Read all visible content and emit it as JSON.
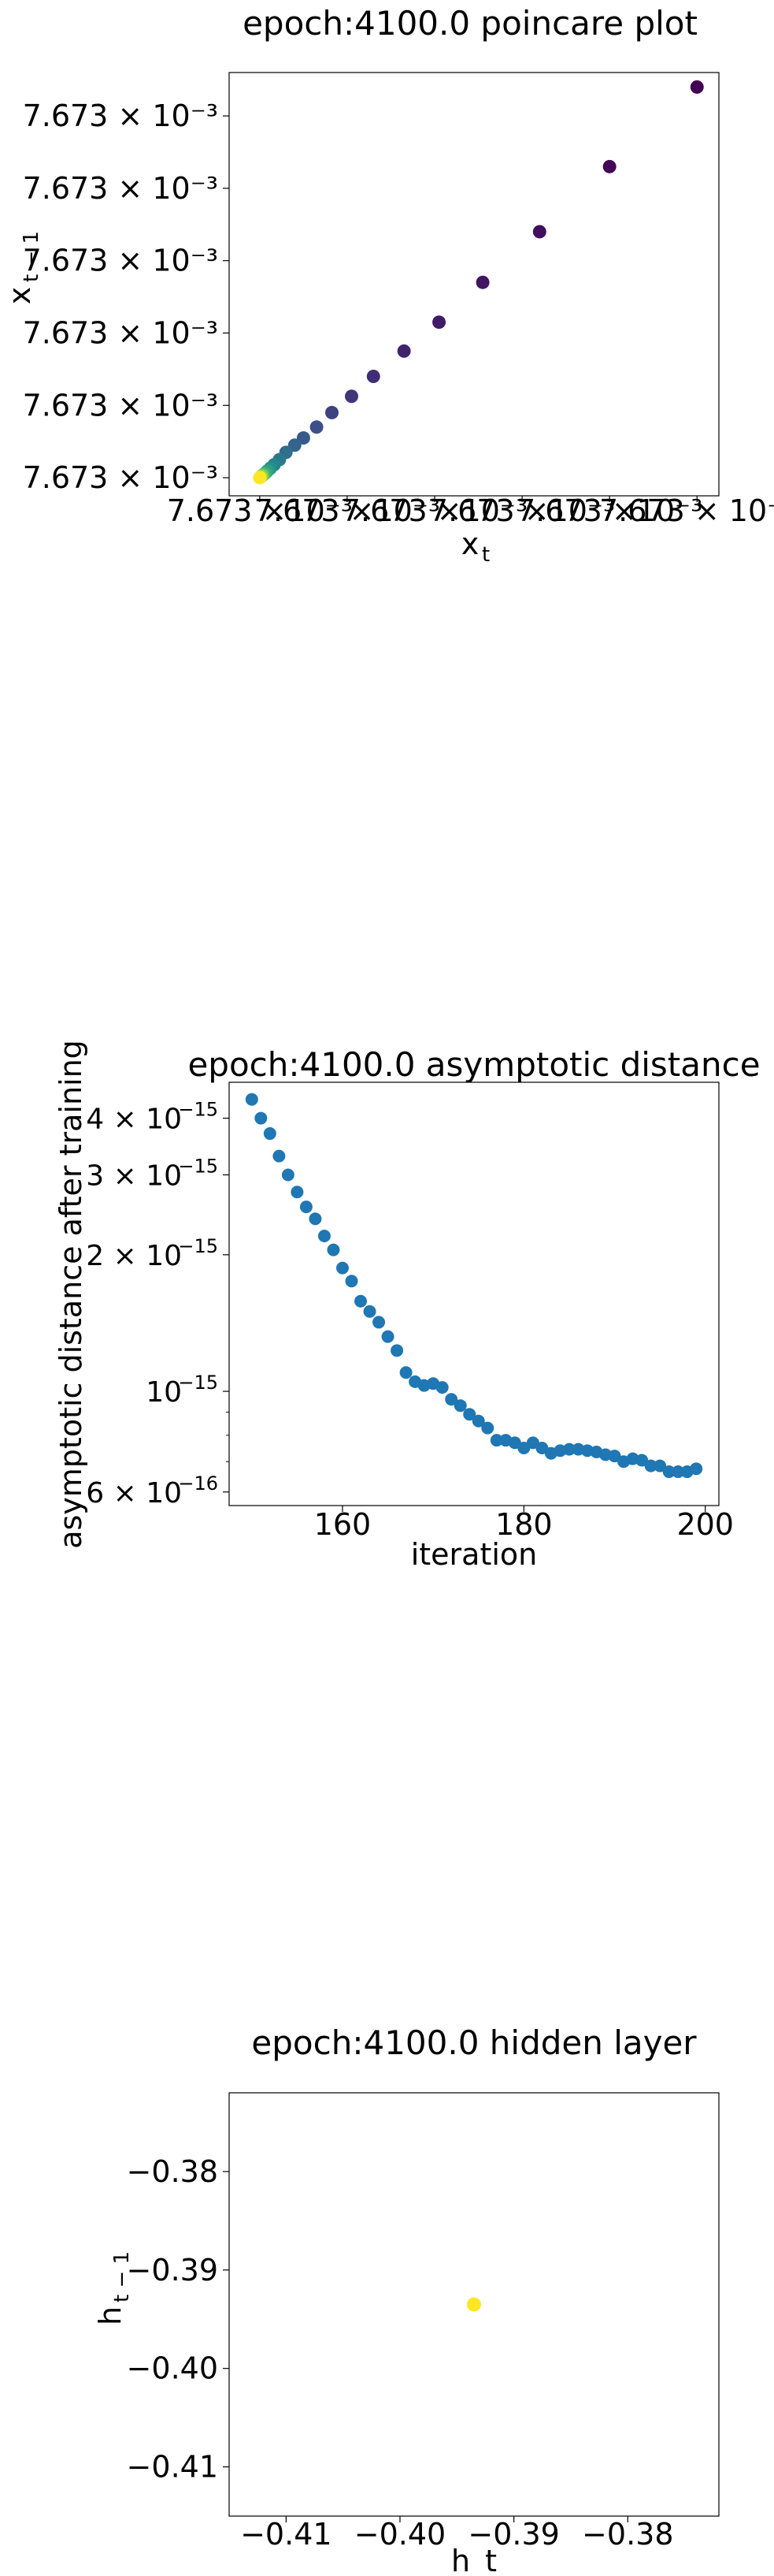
{
  "chart_data": [
    {
      "type": "scatter",
      "title": "epoch:4100.0 poincare plot",
      "xlabel_base": "x",
      "xlabel_sub": "t",
      "ylabel_base": "x",
      "ylabel_sub": "t − 1",
      "x_tick_labels": [
        "7.673 ×10⁻³",
        "7.673 ×10⁻³",
        "7.673 ×10⁻³",
        "7.673 ×10⁻³",
        "7.673 ×10⁻³",
        "7.673 × 10⁻³"
      ],
      "y_tick_labels": [
        "7.673 × 10⁻³",
        "7.673 × 10⁻³",
        "7.673 × 10⁻³",
        "7.673 × 10⁻³",
        "7.673 × 10⁻³",
        "7.673 × 10⁻³"
      ],
      "x_ticks": [
        0.0,
        0.2,
        0.4,
        0.6,
        0.8,
        1.0
      ],
      "y_ticks": [
        0.0,
        0.2,
        0.4,
        0.6,
        0.8,
        1.0
      ],
      "xlim": [
        -0.07,
        1.05
      ],
      "ylim": [
        -0.05,
        1.12
      ],
      "colormap": "viridis",
      "points": [
        {
          "x": 1.0,
          "y": 1.08,
          "c": 0.0
        },
        {
          "x": 0.8,
          "y": 0.86,
          "c": 0.02
        },
        {
          "x": 0.64,
          "y": 0.68,
          "c": 0.04
        },
        {
          "x": 0.51,
          "y": 0.54,
          "c": 0.06
        },
        {
          "x": 0.41,
          "y": 0.43,
          "c": 0.08
        },
        {
          "x": 0.33,
          "y": 0.35,
          "c": 0.11
        },
        {
          "x": 0.26,
          "y": 0.28,
          "c": 0.14
        },
        {
          "x": 0.21,
          "y": 0.225,
          "c": 0.17
        },
        {
          "x": 0.165,
          "y": 0.18,
          "c": 0.2
        },
        {
          "x": 0.13,
          "y": 0.14,
          "c": 0.24
        },
        {
          "x": 0.1,
          "y": 0.11,
          "c": 0.28
        },
        {
          "x": 0.08,
          "y": 0.09,
          "c": 0.32
        },
        {
          "x": 0.06,
          "y": 0.07,
          "c": 0.36
        },
        {
          "x": 0.045,
          "y": 0.05,
          "c": 0.4
        },
        {
          "x": 0.033,
          "y": 0.036,
          "c": 0.45
        },
        {
          "x": 0.024,
          "y": 0.026,
          "c": 0.5
        },
        {
          "x": 0.017,
          "y": 0.018,
          "c": 0.56
        },
        {
          "x": 0.012,
          "y": 0.012,
          "c": 0.62
        },
        {
          "x": 0.008,
          "y": 0.008,
          "c": 0.7
        },
        {
          "x": 0.005,
          "y": 0.005,
          "c": 0.8
        },
        {
          "x": 0.002,
          "y": 0.002,
          "c": 0.9
        },
        {
          "x": 0.0,
          "y": 0.0,
          "c": 1.0
        }
      ]
    },
    {
      "type": "scatter",
      "title": "epoch:4100.0 asymptotic distance",
      "xlabel": "iteration",
      "ylabel": "asymptotic distance after training",
      "yscale": "log",
      "xlim": [
        147.5,
        201.5
      ],
      "ylim": [
        5.6e-16,
        4.8e-15
      ],
      "x_ticks": [
        160,
        180,
        200
      ],
      "x_tick_labels": [
        "160",
        "180",
        "200"
      ],
      "y_ticks": [
        4e-15,
        3e-15,
        2e-15,
        1e-15,
        6e-16
      ],
      "y_tick_labels": [
        {
          "base": "4 × 10",
          "exp": "−15"
        },
        {
          "base": "3 × 10",
          "exp": "−15"
        },
        {
          "base": "2 × 10",
          "exp": "−15"
        },
        {
          "base": "10",
          "exp": "−15"
        },
        {
          "base": "6 × 10",
          "exp": "−16"
        }
      ],
      "color": "#1f77b4",
      "x": [
        150,
        151,
        152,
        153,
        154,
        155,
        156,
        157,
        158,
        159,
        160,
        161,
        162,
        163,
        164,
        165,
        166,
        167,
        168,
        169,
        170,
        171,
        172,
        173,
        174,
        175,
        176,
        177,
        178,
        179,
        180,
        181,
        182,
        183,
        184,
        185,
        186,
        187,
        188,
        189,
        190,
        191,
        192,
        193,
        194,
        195,
        196,
        197,
        198,
        199
      ],
      "y": [
        4.4e-15,
        4e-15,
        3.7e-15,
        3.3e-15,
        3e-15,
        2.75e-15,
        2.55e-15,
        2.4e-15,
        2.2e-15,
        2.05e-15,
        1.87e-15,
        1.75e-15,
        1.58e-15,
        1.5e-15,
        1.42e-15,
        1.32e-15,
        1.23e-15,
        1.1e-15,
        1.05e-15,
        1.03e-15,
        1.04e-15,
        1.02e-15,
        9.6e-16,
        9.3e-16,
        8.9e-16,
        8.6e-16,
        8.3e-16,
        7.8e-16,
        7.8e-16,
        7.7e-16,
        7.5e-16,
        7.7e-16,
        7.5e-16,
        7.3e-16,
        7.4e-16,
        7.45e-16,
        7.45e-16,
        7.4e-16,
        7.35e-16,
        7.25e-16,
        7.2e-16,
        7e-16,
        7.1e-16,
        7.05e-16,
        6.85e-16,
        6.85e-16,
        6.65e-16,
        6.65e-16,
        6.65e-16,
        6.75e-16
      ]
    },
    {
      "type": "scatter",
      "title": "epoch:4100.0 hidden layer",
      "xlabel": "h_t",
      "ylabel_base": "h",
      "ylabel_sub": "t − 1",
      "xlim": [
        -0.415,
        -0.372
      ],
      "ylim": [
        -0.415,
        -0.372
      ],
      "x_ticks": [
        -0.41,
        -0.4,
        -0.39,
        -0.38
      ],
      "x_tick_labels": [
        "−0.41",
        "−0.40",
        "−0.39",
        "−0.38"
      ],
      "y_ticks": [
        -0.38,
        -0.39,
        -0.4,
        -0.41
      ],
      "y_tick_labels": [
        "−0.38",
        "−0.39",
        "−0.40",
        "−0.41"
      ],
      "color": "#fde725",
      "points": [
        {
          "x": -0.3935,
          "y": -0.3935
        }
      ]
    }
  ]
}
